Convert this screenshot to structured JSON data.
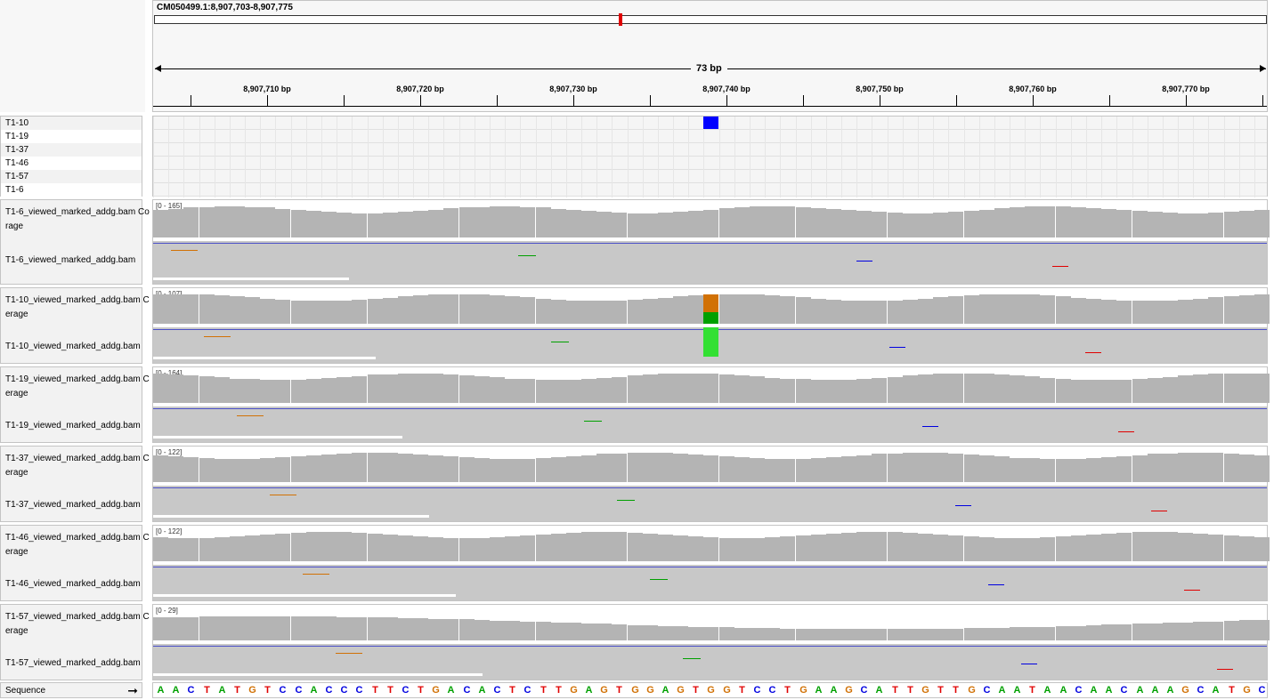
{
  "locus": "CM050499.1:8,907,703-8,907,775",
  "span_label": "73 bp",
  "ruler": {
    "ticks": [
      {
        "label": "8,907,710 bp",
        "x": 300
      },
      {
        "label": "8,907,720 bp",
        "x": 472
      },
      {
        "label": "8,907,730 bp",
        "x": 644
      },
      {
        "label": "8,907,740 bp",
        "x": 816
      },
      {
        "label": "8,907,750 bp",
        "x": 988
      },
      {
        "label": "8,907,760 bp",
        "x": 1160
      },
      {
        "label": "8,907,770 bp",
        "x": 1332
      }
    ]
  },
  "variant_samples": [
    "T1-10",
    "T1-19",
    "T1-37",
    "T1-46",
    "T1-57",
    "T1-6"
  ],
  "tracks": [
    {
      "coverage_label": "T1-6_viewed_marked_addg.bam Co",
      "coverage_label2": "rage",
      "alignment_label": "T1-6_viewed_marked_addg.bam",
      "range": "[0 - 165]"
    },
    {
      "coverage_label": "T1-10_viewed_marked_addg.bam C",
      "coverage_label2": "erage",
      "alignment_label": "T1-10_viewed_marked_addg.bam",
      "range": "[0 - 107]"
    },
    {
      "coverage_label": "T1-19_viewed_marked_addg.bam C",
      "coverage_label2": "erage",
      "alignment_label": "T1-19_viewed_marked_addg.bam",
      "range": "[0 - 164]"
    },
    {
      "coverage_label": "T1-37_viewed_marked_addg.bam C",
      "coverage_label2": "erage",
      "alignment_label": "T1-37_viewed_marked_addg.bam",
      "range": "[0 - 122]"
    },
    {
      "coverage_label": "T1-46_viewed_marked_addg.bam C",
      "coverage_label2": "erage",
      "alignment_label": "T1-46_viewed_marked_addg.bam",
      "range": "[0 - 122]"
    },
    {
      "coverage_label": "T1-57_viewed_marked_addg.bam C",
      "coverage_label2": "erage",
      "alignment_label": "T1-57_viewed_marked_addg.bam",
      "range": "[0 - 29]"
    }
  ],
  "sequence_label": "Sequence",
  "sequence_arrow_icon": "right-arrow-icon",
  "sequence": "AACTATGTCCACCCTTCTGACACTCTTGAGTGGAGTGGTCCTGAAGCATTGTTGCAATAACAACAAAGCATGC",
  "colors": {
    "A": "#00a000",
    "C": "#0000e0",
    "G": "#d17105",
    "T": "#e00000",
    "coverage": "#b4b4b4",
    "read": "#c8c8c8",
    "variant": "#0000ff"
  }
}
